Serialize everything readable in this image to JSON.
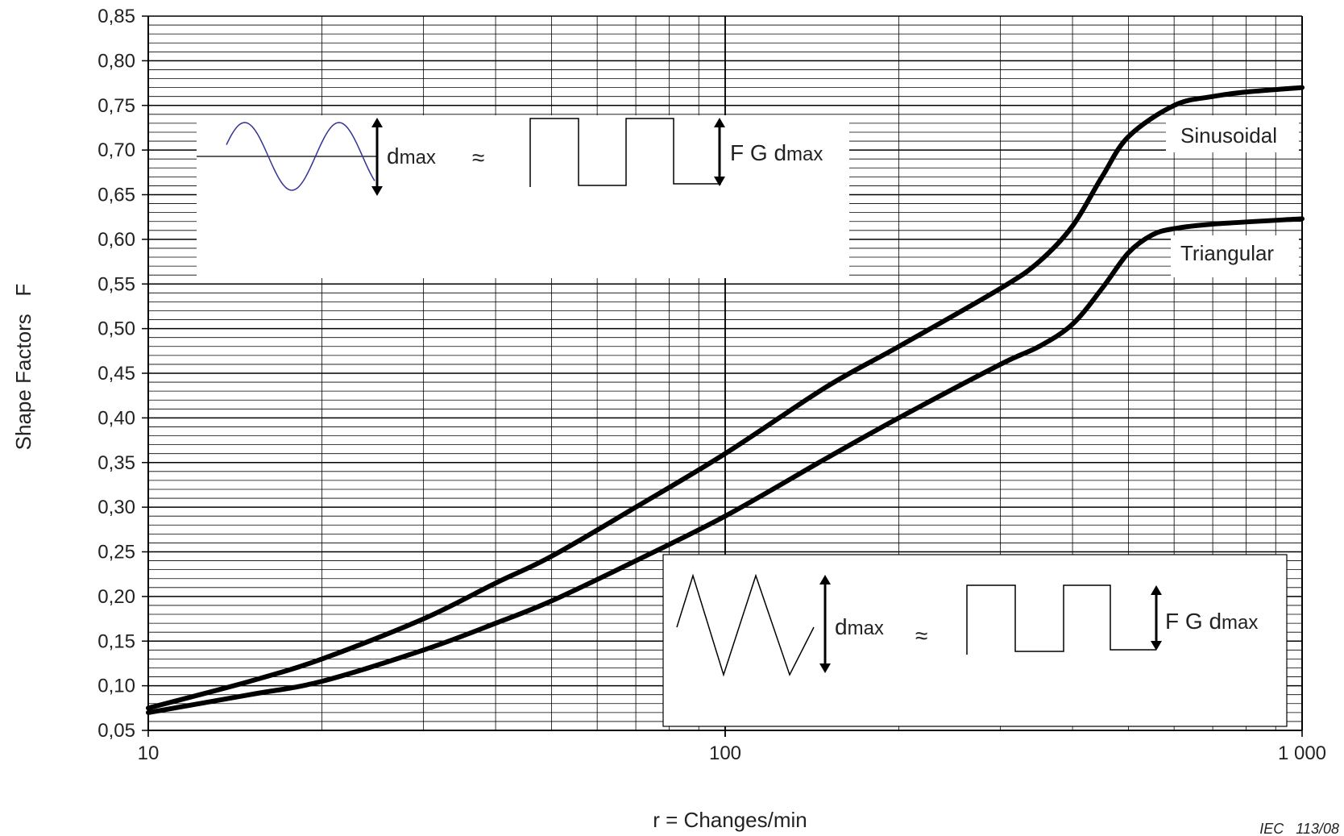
{
  "chart_data": {
    "type": "line",
    "title": "",
    "xlabel": "r = Changes/min",
    "ylabel": "Shape Factors   F",
    "xscale": "log",
    "xlim": [
      10,
      1000
    ],
    "ylim": [
      0.05,
      0.85
    ],
    "x_ticks": [
      {
        "value": 10,
        "label": "10"
      },
      {
        "value": 100,
        "label": "100"
      },
      {
        "value": 1000,
        "label": "1 000"
      }
    ],
    "y_ticks": [
      {
        "value": 0.85,
        "label": "0,85"
      },
      {
        "value": 0.8,
        "label": "0,80"
      },
      {
        "value": 0.75,
        "label": "0,75"
      },
      {
        "value": 0.7,
        "label": "0,70"
      },
      {
        "value": 0.65,
        "label": "0,65"
      },
      {
        "value": 0.6,
        "label": "0,60"
      },
      {
        "value": 0.55,
        "label": "0,55"
      },
      {
        "value": 0.5,
        "label": "0,50"
      },
      {
        "value": 0.45,
        "label": "0,45"
      },
      {
        "value": 0.4,
        "label": "0,40"
      },
      {
        "value": 0.35,
        "label": "0,35"
      },
      {
        "value": 0.3,
        "label": "0,30"
      },
      {
        "value": 0.25,
        "label": "0,25"
      },
      {
        "value": 0.2,
        "label": "0,20"
      },
      {
        "value": 0.15,
        "label": "0,15"
      },
      {
        "value": 0.1,
        "label": "0,10"
      },
      {
        "value": 0.05,
        "label": "0,05"
      }
    ],
    "grid": true,
    "series": [
      {
        "name": "Sinusoidal",
        "color": "#000000",
        "x": [
          10,
          15,
          20,
          30,
          40,
          50,
          70,
          100,
          150,
          200,
          300,
          350,
          400,
          450,
          500,
          600,
          700,
          800,
          1000
        ],
        "y": [
          0.075,
          0.105,
          0.13,
          0.175,
          0.215,
          0.245,
          0.3,
          0.36,
          0.435,
          0.48,
          0.545,
          0.575,
          0.615,
          0.67,
          0.715,
          0.75,
          0.76,
          0.765,
          0.77
        ]
      },
      {
        "name": "Triangular",
        "color": "#000000",
        "x": [
          10,
          15,
          20,
          30,
          40,
          50,
          70,
          100,
          150,
          200,
          300,
          350,
          400,
          450,
          500,
          550,
          600,
          700,
          1000
        ],
        "y": [
          0.07,
          0.09,
          0.105,
          0.14,
          0.17,
          0.195,
          0.24,
          0.29,
          0.355,
          0.4,
          0.46,
          0.48,
          0.505,
          0.545,
          0.585,
          0.605,
          0.612,
          0.617,
          0.623
        ]
      }
    ]
  },
  "insets": {
    "top": {
      "dmax": "d",
      "dmax_sub": "max",
      "approx": "≈",
      "fg_label": "F G d",
      "fg_sub": "max"
    },
    "bottom": {
      "dmax": "d",
      "dmax_sub": "max",
      "approx": "≈",
      "fg_label": "F G d",
      "fg_sub": "max"
    }
  },
  "credit": "IEC   113/08"
}
